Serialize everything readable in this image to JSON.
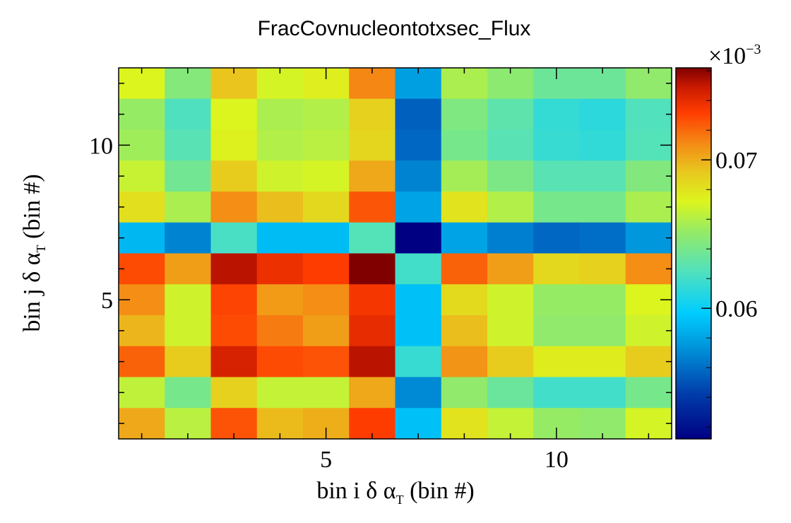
{
  "chart_data": {
    "type": "heatmap",
    "title": "FracCovnucleontotxsec_Flux",
    "xlabel": {
      "pre": "bin i δ α",
      "sub": "T",
      "post": " (bin #)"
    },
    "ylabel": {
      "pre": "bin j δ α",
      "sub": "T",
      "post": " (bin #)"
    },
    "x_range": [
      0.5,
      12.5
    ],
    "y_range": [
      0.5,
      12.5
    ],
    "x_ticks": [
      5,
      10
    ],
    "y_ticks": [
      5,
      10
    ],
    "x_tick_labels": [
      "5",
      "10"
    ],
    "y_tick_labels": [
      "5",
      "10"
    ],
    "colorbar": {
      "range": [
        0.0512,
        0.0762
      ],
      "ticks": [
        0.06,
        0.07
      ],
      "tick_labels": [
        "0.06",
        "0.07"
      ],
      "exponent_label": {
        "base": "×10",
        "exp": "−3"
      }
    },
    "rows_top_to_bottom": [
      [
        0.0672,
        0.0645,
        0.0693,
        0.067,
        0.0675,
        0.0712,
        0.0578,
        0.0658,
        0.0648,
        0.0636,
        0.0636,
        0.065
      ],
      [
        0.0652,
        0.0624,
        0.0672,
        0.0658,
        0.066,
        0.0688,
        0.0555,
        0.0643,
        0.063,
        0.0615,
        0.0612,
        0.0625
      ],
      [
        0.0655,
        0.0628,
        0.0674,
        0.066,
        0.0662,
        0.0686,
        0.0558,
        0.064,
        0.0628,
        0.0616,
        0.0614,
        0.0626
      ],
      [
        0.0666,
        0.0638,
        0.069,
        0.0668,
        0.067,
        0.0702,
        0.0568,
        0.0656,
        0.0642,
        0.0628,
        0.0628,
        0.0644
      ],
      [
        0.0682,
        0.0658,
        0.071,
        0.0695,
        0.0685,
        0.0725,
        0.058,
        0.068,
        0.066,
        0.064,
        0.064,
        0.0658
      ],
      [
        0.0588,
        0.0568,
        0.0622,
        0.059,
        0.059,
        0.0626,
        0.0512,
        0.058,
        0.0566,
        0.0558,
        0.056,
        0.0575
      ],
      [
        0.0728,
        0.0705,
        0.0752,
        0.0738,
        0.0732,
        0.0762,
        0.062,
        0.0722,
        0.0705,
        0.0685,
        0.0688,
        0.071
      ],
      [
        0.071,
        0.0668,
        0.073,
        0.0706,
        0.071,
        0.0735,
        0.0592,
        0.0684,
        0.0668,
        0.0652,
        0.0652,
        0.0672
      ],
      [
        0.0698,
        0.0668,
        0.0728,
        0.0715,
        0.0705,
        0.074,
        0.0592,
        0.0695,
        0.0668,
        0.065,
        0.065,
        0.0668
      ],
      [
        0.0722,
        0.069,
        0.0745,
        0.0728,
        0.0726,
        0.0752,
        0.0616,
        0.0708,
        0.069,
        0.0676,
        0.0676,
        0.069
      ],
      [
        0.0664,
        0.064,
        0.0688,
        0.0665,
        0.0665,
        0.0702,
        0.057,
        0.065,
        0.0635,
        0.062,
        0.062,
        0.064
      ],
      [
        0.0702,
        0.0662,
        0.0726,
        0.0696,
        0.07,
        0.0732,
        0.0592,
        0.068,
        0.0665,
        0.0652,
        0.065,
        0.067
      ]
    ]
  }
}
